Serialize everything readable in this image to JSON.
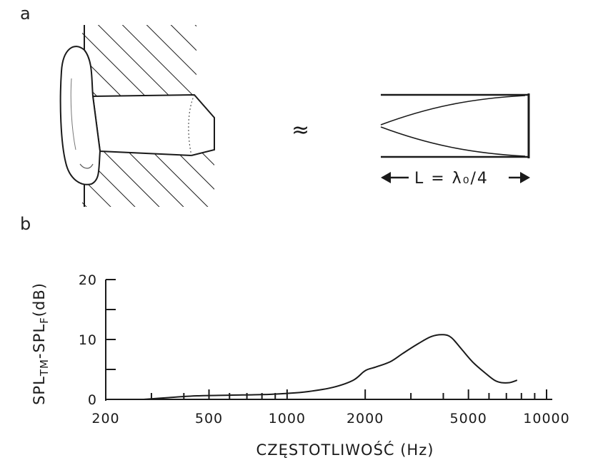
{
  "panels": {
    "a": "a",
    "b": "b"
  },
  "diagram": {
    "approx_symbol": "≈",
    "length_label": "L = λ₀/4"
  },
  "chart_data": {
    "type": "line",
    "title": "",
    "xlabel": "CZĘSTOTLIWOŚĆ (Hz)",
    "ylabel": "SPL_TM-SPL_F(dB)",
    "ylabel_parts": {
      "main1": "SPL",
      "sub1": "TM",
      "main2": "-SPL",
      "sub2": "F",
      "tail": "(dB)"
    },
    "xscale": "log",
    "xlim": [
      200,
      10000
    ],
    "ylim": [
      0,
      20
    ],
    "x_ticks": [
      200,
      500,
      1000,
      2000,
      5000,
      10000
    ],
    "x_tick_labels": [
      "200",
      "500",
      "1000",
      "2000",
      "5000",
      "10000"
    ],
    "x_minor_ticks": [
      300,
      400,
      600,
      700,
      800,
      900,
      3000,
      4000,
      6000,
      7000,
      8000,
      9000
    ],
    "y_ticks": [
      0,
      5,
      10,
      15,
      20
    ],
    "y_tick_labels": [
      "0",
      "",
      "10",
      "",
      "20"
    ],
    "grid": false,
    "series": [
      {
        "x": [
          280,
          350,
          450,
          600,
          800,
          1000,
          1200,
          1500,
          1800,
          2000,
          2200,
          2500,
          2800,
          3200,
          3600,
          4000,
          4300,
          4700,
          5200,
          5800,
          6300,
          6700,
          7200,
          7700
        ],
        "y": [
          0.0,
          0.3,
          0.6,
          0.7,
          0.8,
          1.0,
          1.3,
          2.0,
          3.2,
          4.8,
          5.4,
          6.3,
          7.7,
          9.3,
          10.5,
          10.8,
          10.3,
          8.4,
          6.2,
          4.4,
          3.2,
          2.8,
          2.8,
          3.2
        ]
      }
    ]
  }
}
